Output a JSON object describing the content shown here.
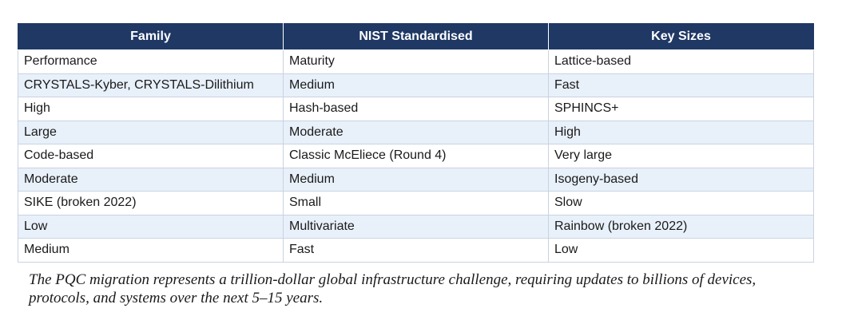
{
  "table": {
    "headers": [
      "Family",
      "NIST Standardised",
      "Key Sizes"
    ],
    "rows": [
      [
        "Performance",
        "Maturity",
        "Lattice-based"
      ],
      [
        "CRYSTALS-Kyber, CRYSTALS-Dilithium",
        "Medium",
        "Fast"
      ],
      [
        "High",
        "Hash-based",
        "SPHINCS+"
      ],
      [
        "Large",
        "Moderate",
        "High"
      ],
      [
        "Code-based",
        "Classic McEliece (Round 4)",
        "Very large"
      ],
      [
        "Moderate",
        "Medium",
        "Isogeny-based"
      ],
      [
        "SIKE (broken 2022)",
        "Small",
        "Slow"
      ],
      [
        "Low",
        "Multivariate",
        "Rainbow (broken 2022)"
      ],
      [
        "Medium",
        "Fast",
        "Low"
      ]
    ]
  },
  "caption": "The PQC migration represents a trillion-dollar global infrastructure challenge, requiring updates to billions of devices, protocols, and systems over the next 5–15 years.",
  "colors": {
    "header_bg": "#1f3864",
    "header_text": "#ffffff",
    "stripe_bg": "#e8f0fa",
    "border": "#c9d3e0"
  }
}
